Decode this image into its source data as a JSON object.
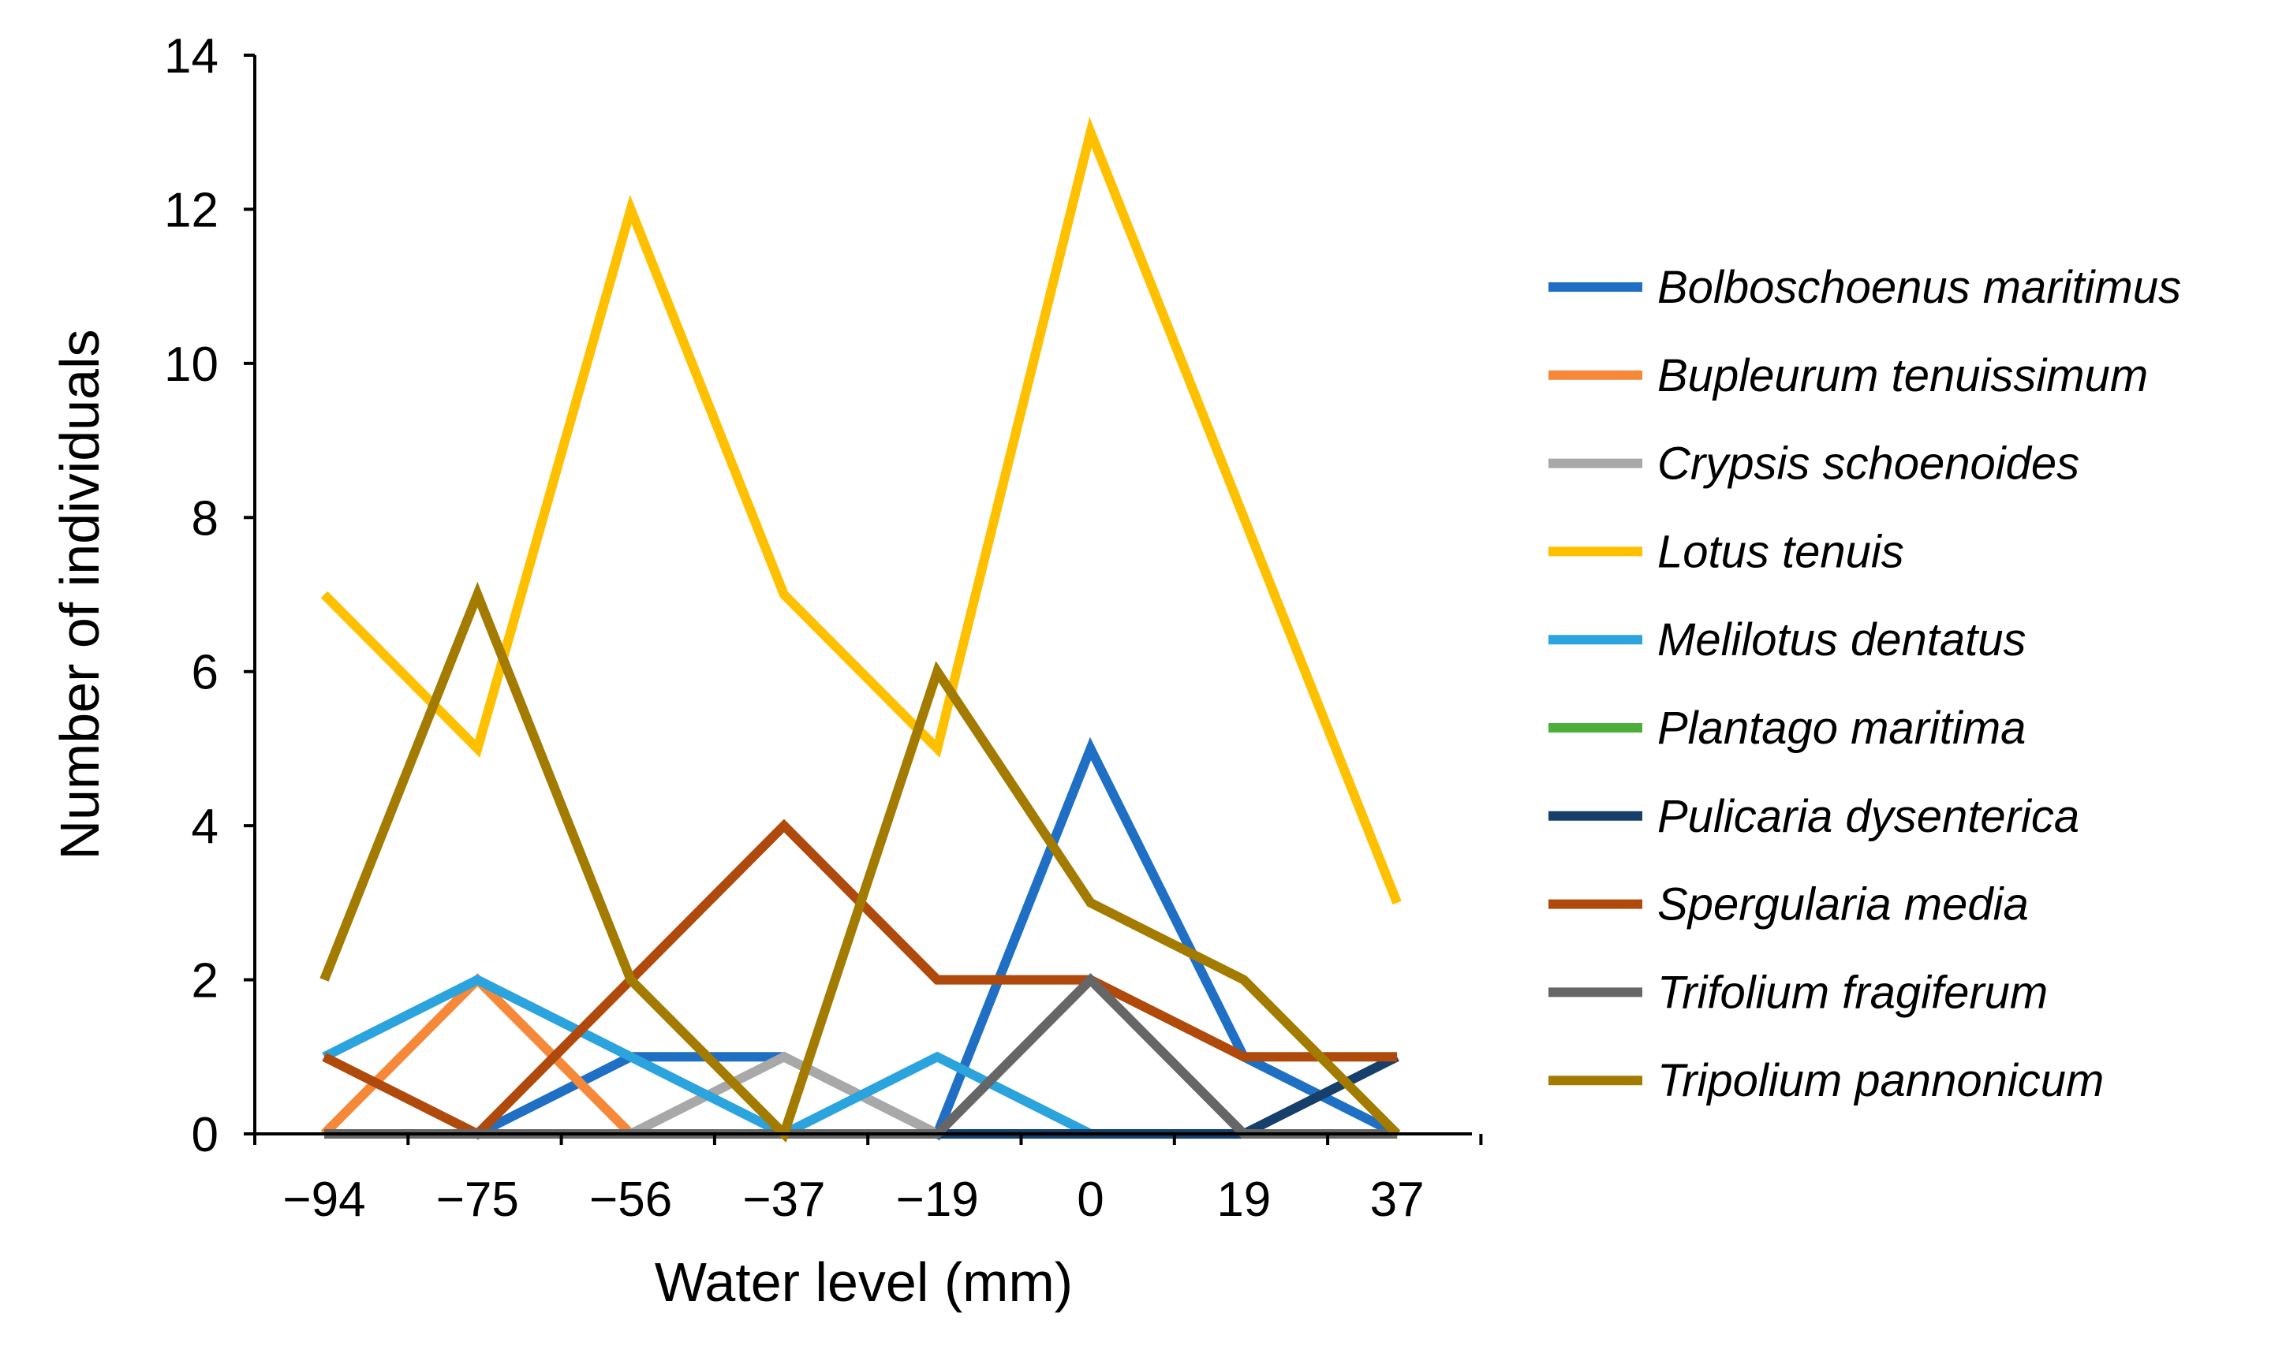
{
  "chart_data": {
    "type": "line",
    "title": "",
    "xlabel": "Water level (mm)",
    "ylabel": "Number of individuals",
    "categories": [
      "−94",
      "−75",
      "−56",
      "−37",
      "−19",
      "0",
      "19",
      "37"
    ],
    "ylim": [
      0,
      14
    ],
    "yticks": [
      0,
      2,
      4,
      6,
      8,
      10,
      12,
      14
    ],
    "grid": false,
    "legend_position": "right",
    "series": [
      {
        "name": "Bolboschoenus maritimus",
        "color": "#1f6fc5",
        "values": [
          0,
          0,
          1,
          1,
          0,
          5,
          1,
          0
        ]
      },
      {
        "name": "Bupleurum tenuissimum",
        "color": "#f6883a",
        "values": [
          0,
          2,
          0,
          0,
          0,
          0,
          0,
          0
        ]
      },
      {
        "name": "Crypsis schoenoides",
        "color": "#a8a8a8",
        "values": [
          0,
          0,
          0,
          1,
          0,
          0,
          0,
          0
        ]
      },
      {
        "name": "Lotus tenuis",
        "color": "#ffc000",
        "values": [
          7,
          5,
          12,
          7,
          5,
          13,
          8,
          3
        ]
      },
      {
        "name": "Melilotus dentatus",
        "color": "#2ba3dc",
        "values": [
          1,
          2,
          1,
          0,
          1,
          0,
          0,
          0
        ]
      },
      {
        "name": "Plantago maritima",
        "color": "#4caf3a",
        "values": [
          0,
          0,
          0,
          0,
          0,
          0,
          0,
          0
        ]
      },
      {
        "name": "Pulicaria dysenterica",
        "color": "#163f6b",
        "values": [
          0,
          0,
          0,
          0,
          0,
          0,
          0,
          1
        ]
      },
      {
        "name": "Spergularia media",
        "color": "#b04a0c",
        "values": [
          1,
          0,
          2,
          4,
          2,
          2,
          1,
          1
        ]
      },
      {
        "name": "Trifolium fragiferum",
        "color": "#666666",
        "values": [
          0,
          0,
          0,
          0,
          0,
          2,
          0,
          0
        ]
      },
      {
        "name": "Tripolium pannonicum",
        "color": "#a37b00",
        "values": [
          2,
          7,
          2,
          0,
          6,
          3,
          2,
          0
        ]
      }
    ]
  }
}
